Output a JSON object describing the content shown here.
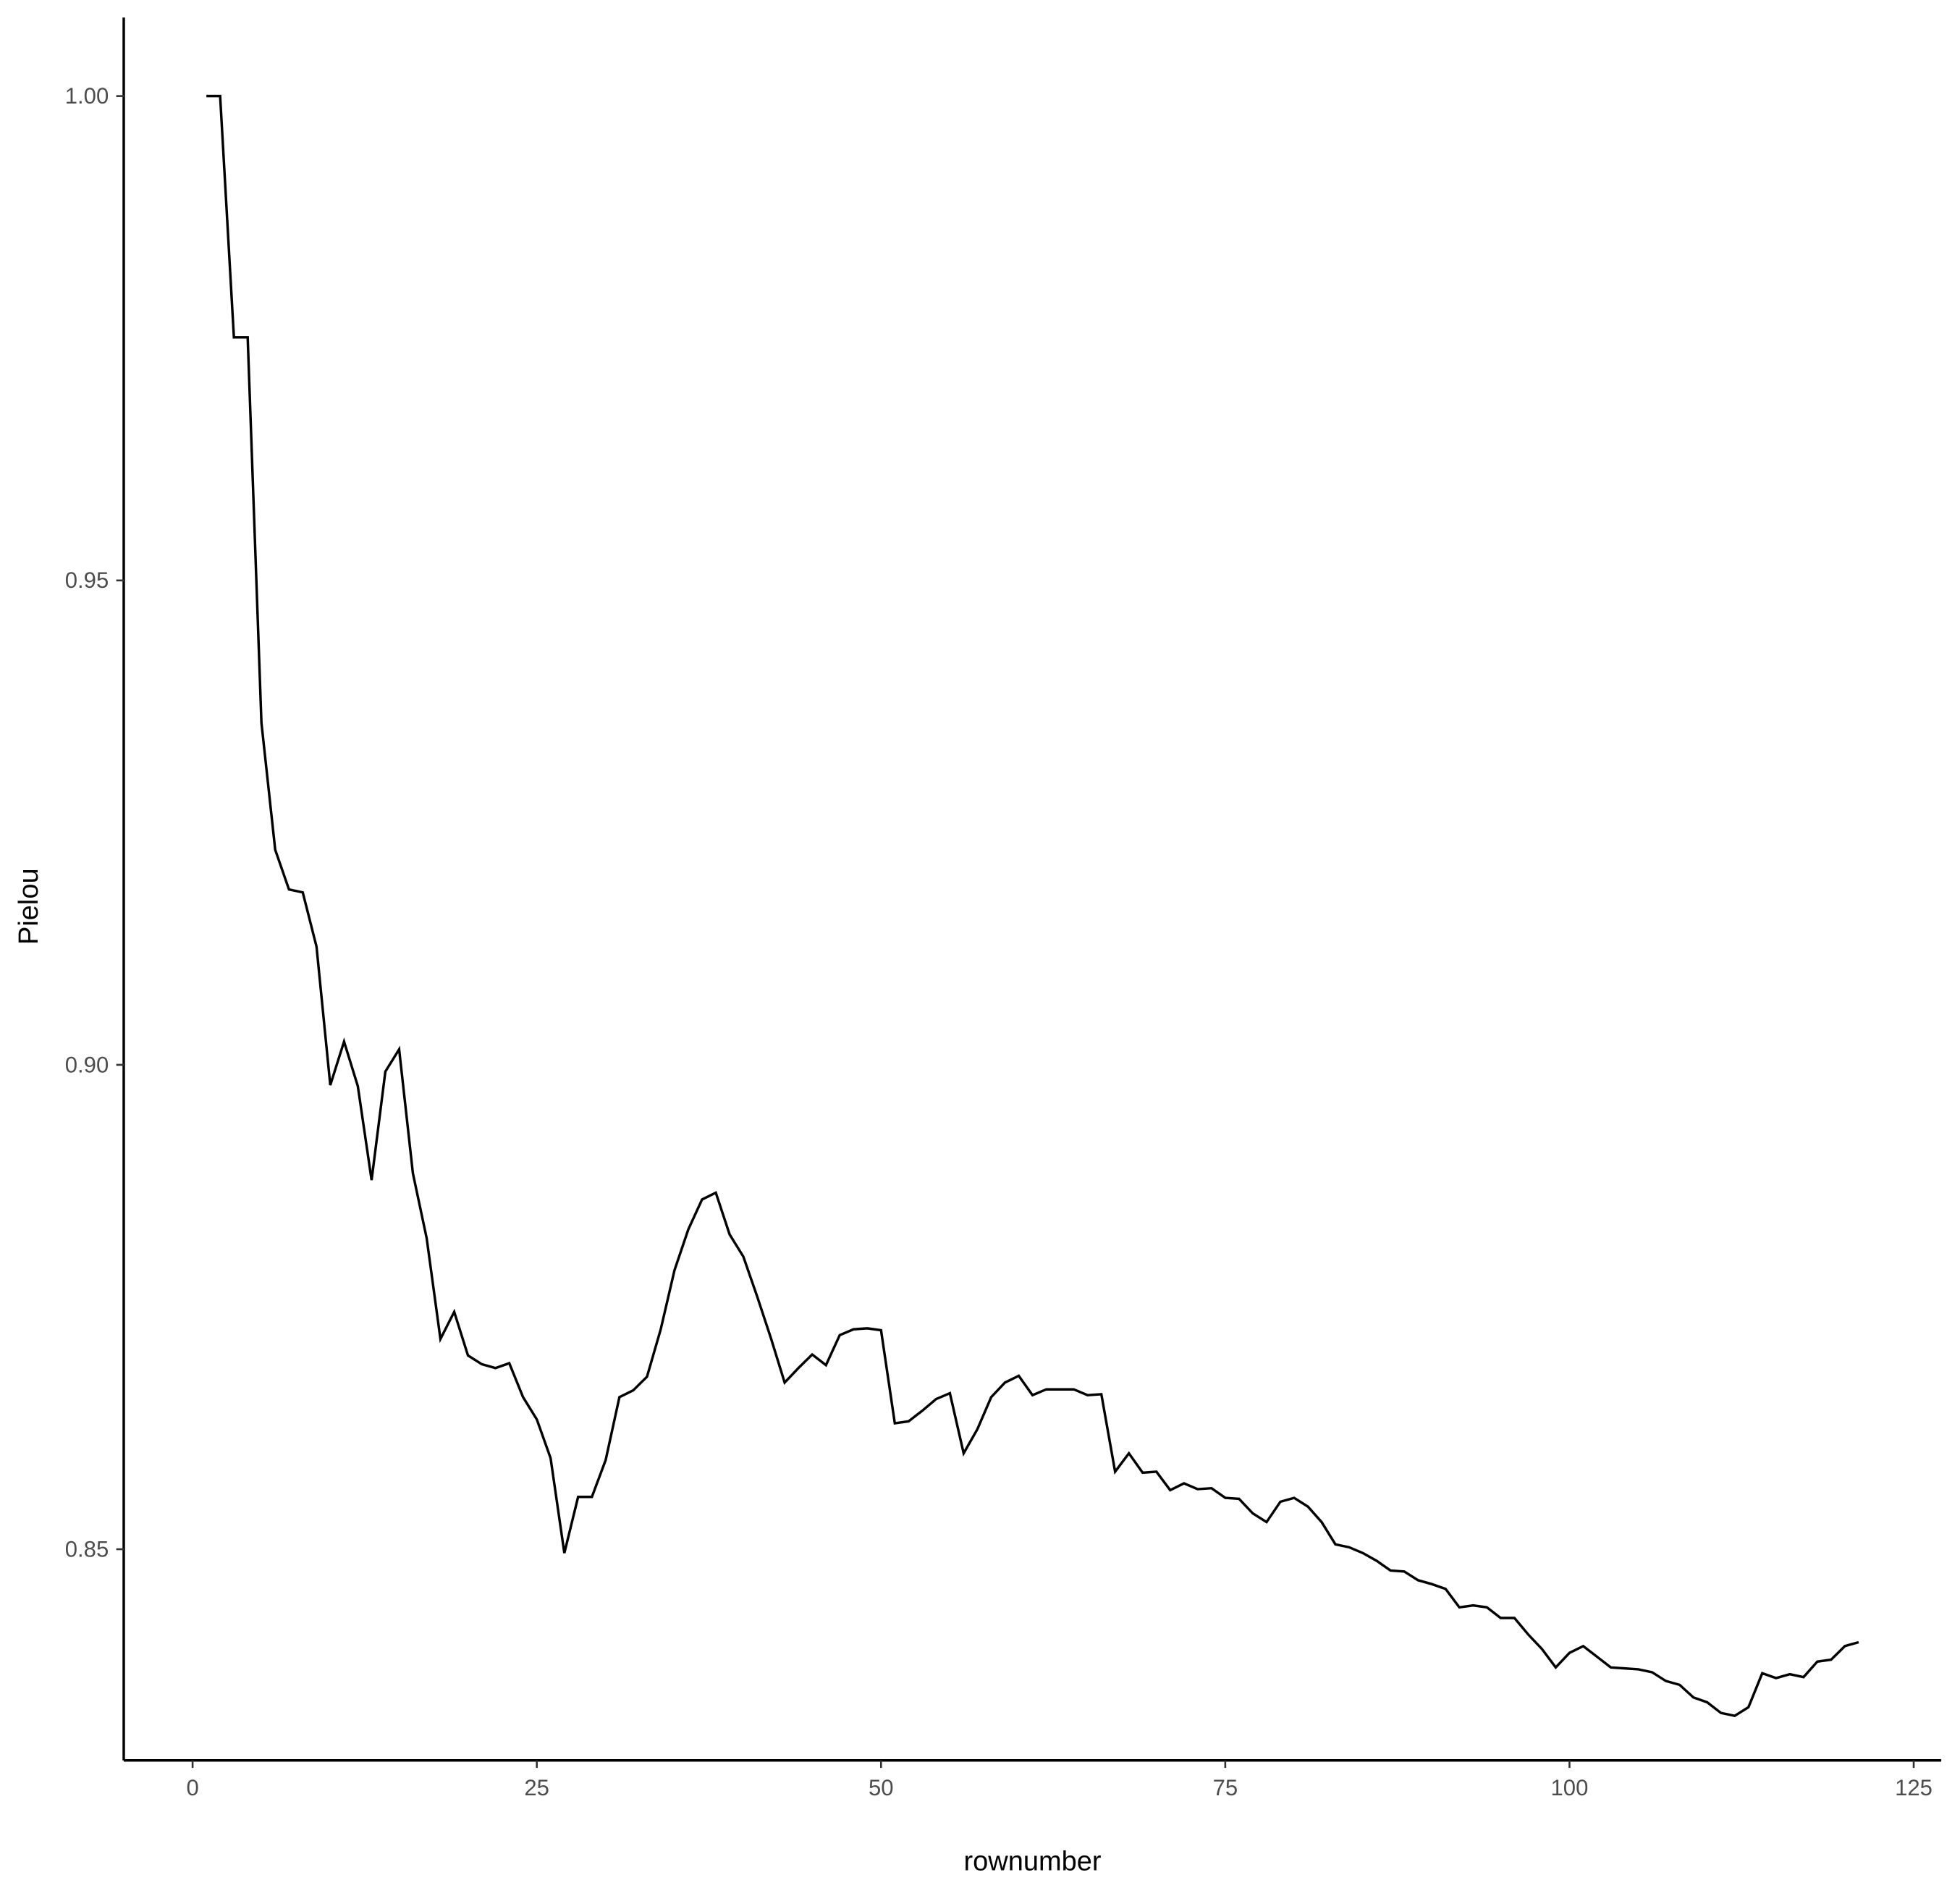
{
  "chart_data": {
    "type": "line",
    "x_label": "rownumber",
    "y_label": "Pielou",
    "x": [
      1,
      2,
      3,
      4,
      5,
      6,
      7,
      8,
      9,
      10,
      11,
      12,
      13,
      14,
      15,
      16,
      17,
      18,
      19,
      20,
      21,
      22,
      23,
      24,
      25,
      26,
      27,
      28,
      29,
      30,
      31,
      32,
      33,
      34,
      35,
      36,
      37,
      38,
      39,
      40,
      41,
      42,
      43,
      44,
      45,
      46,
      47,
      48,
      49,
      50,
      51,
      52,
      53,
      54,
      55,
      56,
      57,
      58,
      59,
      60,
      61,
      62,
      63,
      64,
      65,
      66,
      67,
      68,
      69,
      70,
      71,
      72,
      73,
      74,
      75,
      76,
      77,
      78,
      79,
      80,
      81,
      82,
      83,
      84,
      85,
      86,
      87,
      88,
      89,
      90,
      91,
      92,
      93,
      94,
      95,
      96,
      97,
      98,
      99,
      100,
      101,
      102,
      103,
      104,
      105,
      106,
      107,
      108,
      109,
      110,
      111,
      112,
      113,
      114,
      115,
      116,
      117,
      118,
      119,
      120,
      121
    ],
    "series": [
      {
        "color": "#000000",
        "values": [
          1.0,
          1.0,
          0.9751,
          0.9751,
          0.9353,
          0.9222,
          0.9181,
          0.9178,
          0.9122,
          0.8979,
          0.9024,
          0.8978,
          0.8881,
          0.8993,
          0.9016,
          0.8888,
          0.8821,
          0.8717,
          0.8745,
          0.87,
          0.8691,
          0.8687,
          0.8692,
          0.8657,
          0.8634,
          0.8594,
          0.8496,
          0.8554,
          0.8554,
          0.8592,
          0.8657,
          0.8664,
          0.8678,
          0.8727,
          0.8788,
          0.883,
          0.8861,
          0.8868,
          0.8825,
          0.8802,
          0.8761,
          0.8718,
          0.8672,
          0.8687,
          0.8701,
          0.869,
          0.8721,
          0.8727,
          0.8728,
          0.8726,
          0.863,
          0.8632,
          0.8643,
          0.8655,
          0.8661,
          0.8599,
          0.8624,
          0.8657,
          0.8672,
          0.8679,
          0.8659,
          0.8665,
          0.8665,
          0.8665,
          0.8659,
          0.866,
          0.858,
          0.8599,
          0.8579,
          0.858,
          0.8561,
          0.8568,
          0.8562,
          0.8563,
          0.8553,
          0.8552,
          0.8537,
          0.8528,
          0.8549,
          0.8553,
          0.8544,
          0.8528,
          0.8505,
          0.8502,
          0.8496,
          0.8488,
          0.8478,
          0.8477,
          0.8468,
          0.8464,
          0.8459,
          0.844,
          0.8442,
          0.844,
          0.8429,
          0.8429,
          0.8412,
          0.8397,
          0.8378,
          0.8393,
          0.84,
          0.8389,
          0.8378,
          0.8377,
          0.8376,
          0.8373,
          0.8364,
          0.836,
          0.8347,
          0.8342,
          0.8331,
          0.8328,
          0.8337,
          0.8372,
          0.8367,
          0.8371,
          0.8368,
          0.8384,
          0.8386,
          0.84,
          0.8404
        ]
      }
    ],
    "xlim": [
      -5,
      127
    ],
    "xticks": [
      0,
      25,
      50,
      75,
      100,
      125
    ],
    "ylim": [
      0.8282,
      1.0081
    ],
    "yticks": [
      {
        "value": 0.85,
        "label": "0.85"
      },
      {
        "value": 0.9,
        "label": "0.90"
      },
      {
        "value": 0.95,
        "label": "0.95"
      },
      {
        "value": 1.0,
        "label": "1.00"
      }
    ],
    "grid": false
  }
}
